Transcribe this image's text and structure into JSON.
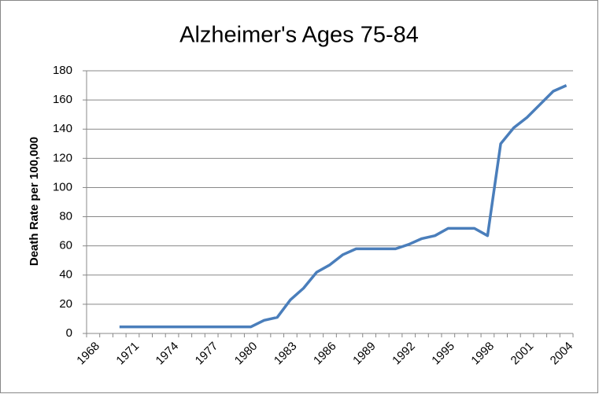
{
  "chart_data": {
    "type": "line",
    "title": "Alzheimer's Ages 75-84",
    "y_label": "Death Rate per 100,000",
    "categories": [
      "1968",
      null,
      null,
      "1971",
      null,
      null,
      "1974",
      null,
      null,
      "1977",
      null,
      null,
      "1980",
      null,
      null,
      "1983",
      null,
      null,
      "1986",
      null,
      null,
      "1989",
      null,
      null,
      "1992",
      null,
      null,
      "1995",
      null,
      null,
      "1998",
      null,
      null,
      "2001",
      null,
      null,
      "2004"
    ],
    "series": [
      {
        "name": "Alzheimer's Ages 75-84",
        "color": "#4a7ebb",
        "values": [
          null,
          null,
          4.5,
          4.5,
          4.5,
          4.5,
          4.5,
          4.5,
          4.5,
          4.5,
          4.5,
          4.5,
          4.5,
          9,
          11,
          23,
          31,
          42,
          47,
          54,
          58,
          58,
          58,
          58,
          61,
          65,
          67,
          72,
          72,
          72,
          67,
          130,
          141,
          148,
          157,
          166,
          170
        ]
      }
    ],
    "ylim": [
      0,
      180
    ],
    "yticks": [
      0,
      20,
      40,
      60,
      80,
      100,
      120,
      140,
      160,
      180
    ],
    "grid": true
  }
}
